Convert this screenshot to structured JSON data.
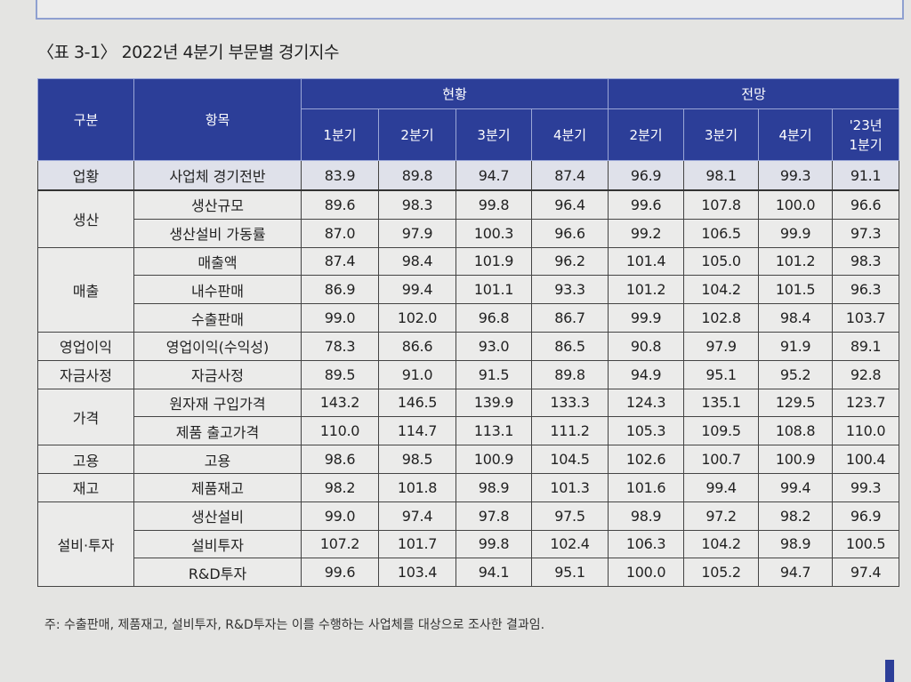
{
  "title": "〈표 3-1〉 2022년 4분기 부문별 경기지수",
  "header": {
    "category": "구분",
    "item": "항목",
    "current": "현황",
    "outlook": "전망",
    "current_quarters": [
      "1분기",
      "2분기",
      "3분기",
      "4분기"
    ],
    "outlook_quarters": [
      "2분기",
      "3분기",
      "4분기",
      "'23년 1분기"
    ]
  },
  "groups": [
    {
      "category": "업황",
      "rows": [
        {
          "item": "사업체 경기전반",
          "values": [
            "83.9",
            "89.8",
            "94.7",
            "87.4",
            "96.9",
            "98.1",
            "99.3",
            "91.1"
          ]
        }
      ]
    },
    {
      "category": "생산",
      "rows": [
        {
          "item": "생산규모",
          "values": [
            "89.6",
            "98.3",
            "99.8",
            "96.4",
            "99.6",
            "107.8",
            "100.0",
            "96.6"
          ]
        },
        {
          "item": "생산설비 가동률",
          "values": [
            "87.0",
            "97.9",
            "100.3",
            "96.6",
            "99.2",
            "106.5",
            "99.9",
            "97.3"
          ]
        }
      ]
    },
    {
      "category": "매출",
      "rows": [
        {
          "item": "매출액",
          "values": [
            "87.4",
            "98.4",
            "101.9",
            "96.2",
            "101.4",
            "105.0",
            "101.2",
            "98.3"
          ]
        },
        {
          "item": "내수판매",
          "values": [
            "86.9",
            "99.4",
            "101.1",
            "93.3",
            "101.2",
            "104.2",
            "101.5",
            "96.3"
          ]
        },
        {
          "item": "수출판매",
          "values": [
            "99.0",
            "102.0",
            "96.8",
            "86.7",
            "99.9",
            "102.8",
            "98.4",
            "103.7"
          ]
        }
      ]
    },
    {
      "category": "영업이익",
      "rows": [
        {
          "item": "영업이익(수익성)",
          "values": [
            "78.3",
            "86.6",
            "93.0",
            "86.5",
            "90.8",
            "97.9",
            "91.9",
            "89.1"
          ]
        }
      ]
    },
    {
      "category": "자금사정",
      "rows": [
        {
          "item": "자금사정",
          "values": [
            "89.5",
            "91.0",
            "91.5",
            "89.8",
            "94.9",
            "95.1",
            "95.2",
            "92.8"
          ]
        }
      ]
    },
    {
      "category": "가격",
      "rows": [
        {
          "item": "원자재 구입가격",
          "values": [
            "143.2",
            "146.5",
            "139.9",
            "133.3",
            "124.3",
            "135.1",
            "129.5",
            "123.7"
          ]
        },
        {
          "item": "제품 출고가격",
          "values": [
            "110.0",
            "114.7",
            "113.1",
            "111.2",
            "105.3",
            "109.5",
            "108.8",
            "110.0"
          ]
        }
      ]
    },
    {
      "category": "고용",
      "rows": [
        {
          "item": "고용",
          "values": [
            "98.6",
            "98.5",
            "100.9",
            "104.5",
            "102.6",
            "100.7",
            "100.9",
            "100.4"
          ]
        }
      ]
    },
    {
      "category": "재고",
      "rows": [
        {
          "item": "제품재고",
          "values": [
            "98.2",
            "101.8",
            "98.9",
            "101.3",
            "101.6",
            "99.4",
            "99.4",
            "99.3"
          ]
        }
      ]
    },
    {
      "category": "설비·투자",
      "rows": [
        {
          "item": "생산설비",
          "values": [
            "99.0",
            "97.4",
            "97.8",
            "97.5",
            "98.9",
            "97.2",
            "98.2",
            "96.9"
          ]
        },
        {
          "item": "설비투자",
          "values": [
            "107.2",
            "101.7",
            "99.8",
            "102.4",
            "106.3",
            "104.2",
            "98.9",
            "100.5"
          ]
        },
        {
          "item": "R&D투자",
          "values": [
            "99.6",
            "103.4",
            "94.1",
            "95.1",
            "100.0",
            "105.2",
            "94.7",
            "97.4"
          ]
        }
      ]
    }
  ],
  "note": "주: 수출판매, 제품재고, 설비투자, R&D투자는 이를 수행하는 사업체를 대상으로 조사한 결과임.",
  "colors": {
    "header_bg": "#2c3e98",
    "header_text": "#ffffff",
    "highlight_row": "#dfe1ea"
  }
}
